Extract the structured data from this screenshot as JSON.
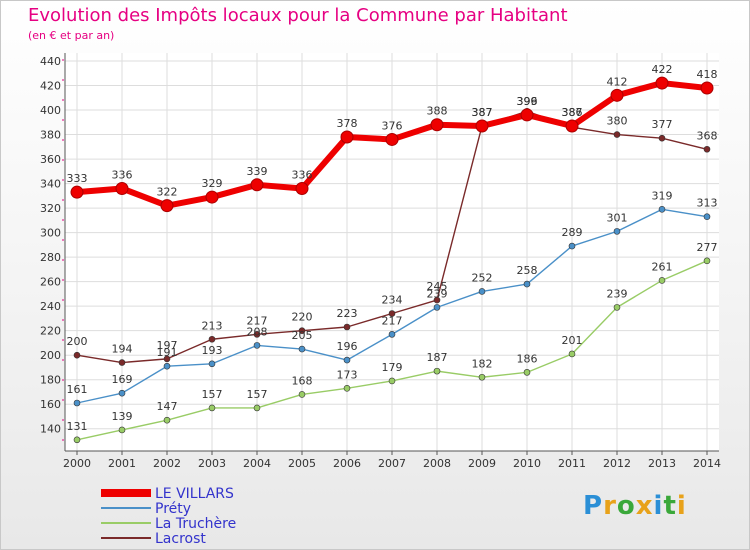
{
  "title": "Evolution des Impôts locaux pour la Commune par Habitant",
  "subtitle": "(en € et par an)",
  "logo": {
    "text": "Proxiti",
    "letters": [
      {
        "ch": "P",
        "color": "#2b8fd6"
      },
      {
        "ch": "r",
        "color": "#e8a21a"
      },
      {
        "ch": "o",
        "color": "#3aa83a"
      },
      {
        "ch": "x",
        "color": "#e8a21a"
      },
      {
        "ch": "i",
        "color": "#2b8fd6"
      },
      {
        "ch": "t",
        "color": "#3aa83a"
      },
      {
        "ch": "i",
        "color": "#e8a21a"
      }
    ]
  },
  "chart_data": {
    "type": "line",
    "title": "Evolution des Impôts locaux pour la Commune par Habitant",
    "subtitle": "(en € et par an)",
    "x": [
      2000,
      2001,
      2002,
      2003,
      2004,
      2005,
      2006,
      2007,
      2008,
      2009,
      2010,
      2011,
      2012,
      2013,
      2014
    ],
    "ylim": [
      130,
      440
    ],
    "yticks": [
      140,
      160,
      180,
      200,
      220,
      240,
      260,
      280,
      300,
      320,
      340,
      360,
      380,
      400,
      420,
      440
    ],
    "grid": true,
    "legend_position": "bottom-left",
    "series": [
      {
        "name": "LE VILLARS",
        "color": "#ee0000",
        "values": [
          333,
          336,
          322,
          329,
          339,
          336,
          378,
          376,
          388,
          387,
          396,
          387,
          412,
          422,
          418
        ]
      },
      {
        "name": "Préty",
        "color": "#4a90c8",
        "values": [
          161,
          169,
          191,
          193,
          208,
          205,
          196,
          217,
          239,
          252,
          258,
          289,
          301,
          319,
          313
        ]
      },
      {
        "name": "La Truchère",
        "color": "#99cc66",
        "values": [
          131,
          139,
          147,
          157,
          157,
          168,
          173,
          179,
          187,
          182,
          186,
          201,
          239,
          261,
          277
        ]
      },
      {
        "name": "Lacrost",
        "color": "#7a2a2a",
        "values": [
          200,
          194,
          197,
          213,
          217,
          220,
          223,
          234,
          245,
          387,
          399,
          386,
          380,
          377,
          368
        ]
      }
    ],
    "point_labels": [
      {
        "x": 2000,
        "y": 333,
        "text": "333"
      },
      {
        "x": 2001,
        "y": 336,
        "text": "336"
      },
      {
        "x": 2002,
        "y": 322,
        "text": "322"
      },
      {
        "x": 2003,
        "y": 329,
        "text": "329"
      },
      {
        "x": 2004,
        "y": 339,
        "text": "339"
      },
      {
        "x": 2005,
        "y": 336,
        "text": "336"
      },
      {
        "x": 2006,
        "y": 378,
        "text": "378"
      },
      {
        "x": 2007,
        "y": 376,
        "text": "376"
      },
      {
        "x": 2008,
        "y": 388,
        "text": "388"
      },
      {
        "x": 2009,
        "y": 387,
        "text": "387"
      },
      {
        "x": 2009,
        "y": 387,
        "text": "387"
      },
      {
        "x": 2010,
        "y": 396,
        "text": "396"
      },
      {
        "x": 2010,
        "y": 396,
        "text": "399"
      },
      {
        "x": 2011,
        "y": 387,
        "text": "387"
      },
      {
        "x": 2011,
        "y": 387,
        "text": "386"
      },
      {
        "x": 2012,
        "y": 412,
        "text": "412"
      },
      {
        "x": 2013,
        "y": 422,
        "text": "422"
      },
      {
        "x": 2014,
        "y": 418,
        "text": "418"
      },
      {
        "x": 2000,
        "y": 161,
        "text": "161"
      },
      {
        "x": 2001,
        "y": 169,
        "text": "169"
      },
      {
        "x": 2002,
        "y": 191,
        "text": "191"
      },
      {
        "x": 2003,
        "y": 193,
        "text": "193"
      },
      {
        "x": 2004,
        "y": 208,
        "text": "208"
      },
      {
        "x": 2005,
        "y": 205,
        "text": "205"
      },
      {
        "x": 2006,
        "y": 196,
        "text": "196"
      },
      {
        "x": 2007,
        "y": 217,
        "text": "217"
      },
      {
        "x": 2008,
        "y": 239,
        "text": "239"
      },
      {
        "x": 2009,
        "y": 252,
        "text": "252"
      },
      {
        "x": 2010,
        "y": 258,
        "text": "258"
      },
      {
        "x": 2011,
        "y": 289,
        "text": "289"
      },
      {
        "x": 2012,
        "y": 301,
        "text": "301"
      },
      {
        "x": 2013,
        "y": 319,
        "text": "319"
      },
      {
        "x": 2014,
        "y": 313,
        "text": "313"
      },
      {
        "x": 2000,
        "y": 131,
        "text": "131"
      },
      {
        "x": 2001,
        "y": 139,
        "text": "139"
      },
      {
        "x": 2002,
        "y": 147,
        "text": "147"
      },
      {
        "x": 2003,
        "y": 157,
        "text": "157"
      },
      {
        "x": 2004,
        "y": 157,
        "text": "157"
      },
      {
        "x": 2005,
        "y": 168,
        "text": "168"
      },
      {
        "x": 2006,
        "y": 173,
        "text": "173"
      },
      {
        "x": 2007,
        "y": 179,
        "text": "179"
      },
      {
        "x": 2008,
        "y": 187,
        "text": "187"
      },
      {
        "x": 2009,
        "y": 182,
        "text": "182"
      },
      {
        "x": 2010,
        "y": 186,
        "text": "186"
      },
      {
        "x": 2011,
        "y": 201,
        "text": "201"
      },
      {
        "x": 2012,
        "y": 239,
        "text": "239"
      },
      {
        "x": 2013,
        "y": 261,
        "text": "261"
      },
      {
        "x": 2014,
        "y": 277,
        "text": "277"
      },
      {
        "x": 2000,
        "y": 200,
        "text": "200"
      },
      {
        "x": 2001,
        "y": 194,
        "text": "194"
      },
      {
        "x": 2002,
        "y": 197,
        "text": "197"
      },
      {
        "x": 2003,
        "y": 213,
        "text": "213"
      },
      {
        "x": 2004,
        "y": 217,
        "text": "217"
      },
      {
        "x": 2005,
        "y": 220,
        "text": "220"
      },
      {
        "x": 2006,
        "y": 223,
        "text": "223"
      },
      {
        "x": 2007,
        "y": 234,
        "text": "234"
      },
      {
        "x": 2008,
        "y": 245,
        "text": "245"
      },
      {
        "x": 2012,
        "y": 380,
        "text": "380"
      },
      {
        "x": 2013,
        "y": 377,
        "text": "377"
      },
      {
        "x": 2014,
        "y": 368,
        "text": "368"
      }
    ]
  }
}
